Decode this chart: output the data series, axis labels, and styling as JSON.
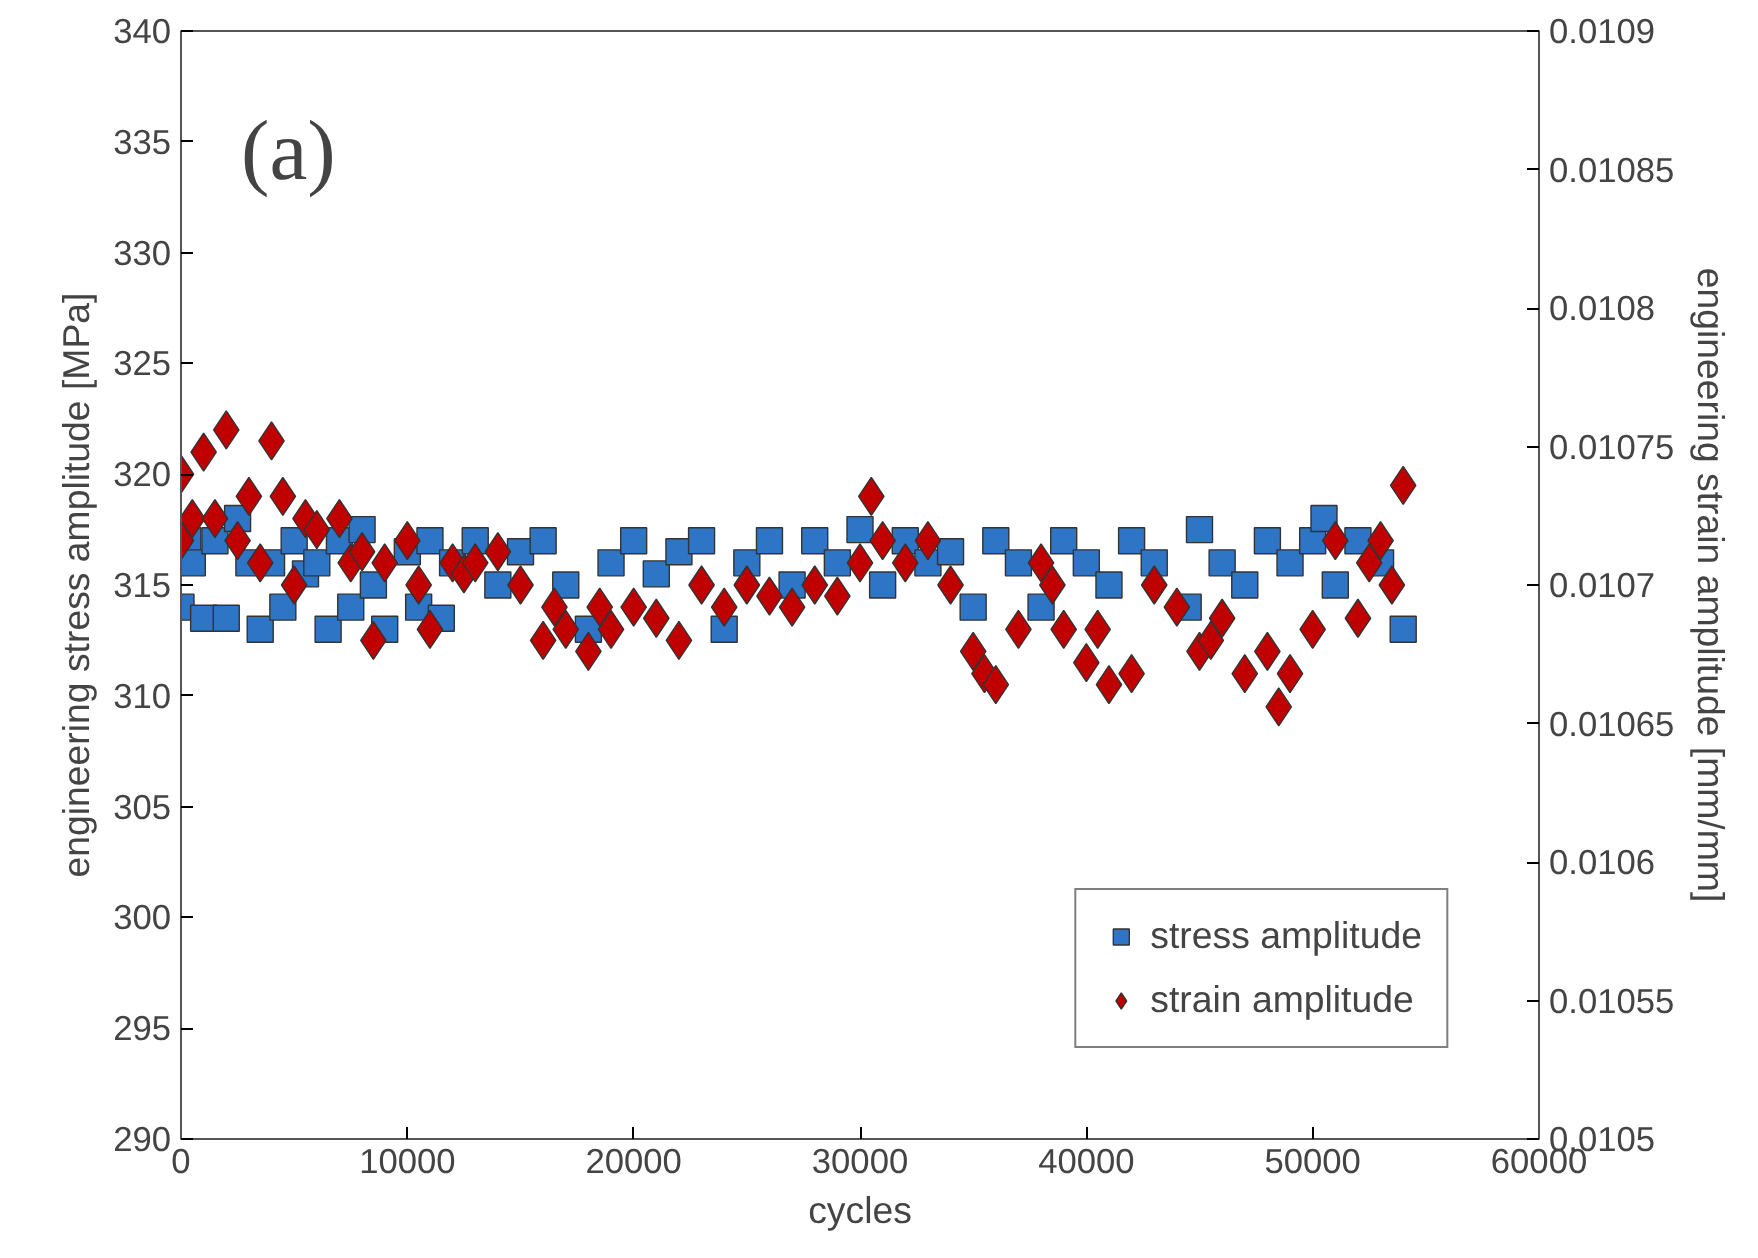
{
  "chart_data": {
    "type": "scatter",
    "xlabel": "cycles",
    "ylabel": "engineering stress amplitude [MPa]",
    "y2label": "engineering strain amplitude [mm/mm]",
    "annotations": [
      "(a)"
    ],
    "xlim": [
      0,
      60000
    ],
    "xticks": [
      0,
      10000,
      20000,
      30000,
      40000,
      50000,
      60000
    ],
    "ylim": [
      290,
      340
    ],
    "yticks": [
      290,
      295,
      300,
      305,
      310,
      315,
      320,
      325,
      330,
      335,
      340
    ],
    "y2lim": [
      0.0105,
      0.0109
    ],
    "y2ticks": [
      0.0105,
      0.01055,
      0.0106,
      0.01065,
      0.0107,
      0.01075,
      0.0108,
      0.01085,
      0.0109
    ],
    "grid": false,
    "legend": "bottom right",
    "series": [
      {
        "name": "stress amplitude",
        "color": "#2e75c6",
        "marker": "square",
        "x": [
          300,
          0,
          500,
          1000,
          1500,
          2000,
          2500,
          3000,
          3500,
          4000,
          4500,
          5000,
          5500,
          6000,
          6500,
          7000,
          7500,
          8000,
          8500,
          9000,
          10000,
          10500,
          11000,
          11500,
          12000,
          13000,
          14000,
          15000,
          16000,
          17000,
          18000,
          19000,
          20000,
          21000,
          22000,
          23000,
          24000,
          25000,
          26000,
          27000,
          28000,
          29000,
          30000,
          31000,
          32000,
          33000,
          34000,
          35000,
          36000,
          37000,
          38000,
          39000,
          40000,
          41000,
          42000,
          43000,
          44500,
          45000,
          46000,
          47000,
          48000,
          49000,
          50000,
          50500,
          51000,
          52000,
          53000,
          54000
        ],
        "values": [
          317,
          314,
          316,
          313.5,
          317,
          313.5,
          318,
          316,
          313,
          316,
          314,
          317,
          315.5,
          316,
          313,
          317,
          314,
          317.5,
          315,
          313,
          316.5,
          314,
          317,
          313.5,
          316,
          317,
          315,
          316.5,
          317,
          315,
          313,
          316,
          317,
          315.5,
          316.5,
          317,
          313,
          316,
          317,
          315,
          317,
          316,
          317.5,
          315,
          317,
          316,
          316.5,
          314,
          317,
          316,
          314,
          317,
          316,
          315,
          317,
          316,
          314,
          317.5,
          316,
          315,
          317,
          316,
          317,
          318,
          315,
          317,
          316,
          313
        ]
      },
      {
        "name": "strain amplitude",
        "color": "#c00000",
        "marker": "diamond",
        "axis": "y2",
        "x": [
          0,
          0,
          500,
          1000,
          1500,
          2000,
          2500,
          3000,
          3500,
          4000,
          4500,
          5000,
          5500,
          6000,
          7000,
          7500,
          8000,
          8500,
          9000,
          10000,
          10500,
          11000,
          12000,
          12500,
          13000,
          14000,
          15000,
          16000,
          16500,
          17000,
          18000,
          18500,
          19000,
          20000,
          21000,
          22000,
          23000,
          24000,
          25000,
          26000,
          27000,
          28000,
          29000,
          30000,
          30500,
          31000,
          32000,
          33000,
          34000,
          35000,
          35500,
          36000,
          37000,
          38000,
          38500,
          39000,
          40000,
          40500,
          41000,
          42000,
          43000,
          44000,
          45000,
          45500,
          46000,
          47000,
          48000,
          48500,
          49000,
          50000,
          51000,
          52000,
          52500,
          53000,
          53500,
          54000
        ],
        "values": [
          0.010716,
          0.01074,
          0.010724,
          0.010748,
          0.010724,
          0.010756,
          0.010716,
          0.010732,
          0.010708,
          0.010752,
          0.010732,
          0.0107,
          0.010724,
          0.01072,
          0.010724,
          0.010708,
          0.010712,
          0.01068,
          0.010708,
          0.010716,
          0.0107,
          0.010684,
          0.010708,
          0.010704,
          0.010708,
          0.010712,
          0.0107,
          0.01068,
          0.010692,
          0.010684,
          0.010676,
          0.010692,
          0.010684,
          0.010692,
          0.010688,
          0.01068,
          0.0107,
          0.010692,
          0.0107,
          0.010696,
          0.010692,
          0.0107,
          0.010696,
          0.010708,
          0.010732,
          0.010716,
          0.010708,
          0.010716,
          0.0107,
          0.010676,
          0.010668,
          0.010664,
          0.010684,
          0.010708,
          0.0107,
          0.010684,
          0.010672,
          0.010684,
          0.010664,
          0.010668,
          0.0107,
          0.010692,
          0.010676,
          0.01068,
          0.010688,
          0.010668,
          0.010676,
          0.010656,
          0.010668,
          0.010684,
          0.010716,
          0.010688,
          0.010708,
          0.010716,
          0.0107,
          0.010736
        ]
      }
    ]
  }
}
